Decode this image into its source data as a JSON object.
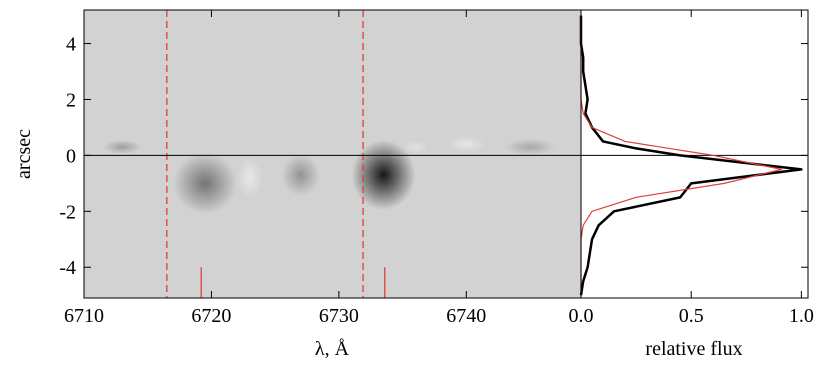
{
  "chart_data": [
    {
      "type": "heatmap",
      "xlabel": "λ, Å",
      "ylabel": "arcsec",
      "xlim": [
        6710,
        6749
      ],
      "ylim": [
        -5.1,
        5.2
      ],
      "xticks": [
        6710,
        6720,
        6730,
        6740
      ],
      "yticks": [
        -4,
        -2,
        0,
        2,
        4
      ],
      "background": "#d2d2d2",
      "features": {
        "x": [
          6719.5,
          6733.5,
          6727,
          6723,
          6713,
          6740,
          6745,
          6736
        ],
        "y": [
          -1.0,
          -0.7,
          -0.7,
          -0.8,
          0.3,
          0.4,
          0.3,
          0.3
        ],
        "width": [
          5,
          5,
          3,
          2,
          3,
          3,
          4,
          2
        ],
        "height": [
          2.2,
          2.5,
          1.5,
          1.5,
          0.5,
          0.6,
          0.6,
          0.5
        ],
        "values": [
          0.45,
          0.9,
          0.3,
          -0.5,
          0.25,
          -0.45,
          0.2,
          -0.35
        ]
      },
      "dashed_lines_x": [
        6716.5,
        6731.9
      ],
      "dashed_color": "#e0403a",
      "markers_x": [
        6719.2,
        6733.6
      ],
      "markers_ylim": [
        -5.1,
        -4.0
      ],
      "hline": 0
    },
    {
      "type": "line",
      "xlabel": "relative flux",
      "xlim": [
        0,
        1.03
      ],
      "ylim": [
        -5.1,
        5.2
      ],
      "xticks": [
        {
          "value": 0,
          "label": "0.0"
        },
        {
          "value": 0.5,
          "label": "0.5"
        },
        {
          "value": 1,
          "label": "1.0"
        }
      ],
      "yticks": [
        -4,
        -2,
        0,
        2,
        4
      ],
      "hline": 0,
      "y": [
        -5,
        -4.5,
        -4,
        -3.5,
        -3,
        -2.5,
        -2,
        -1.5,
        -1,
        -0.5,
        0,
        0.25,
        0.5,
        1,
        1.5,
        2,
        2.5,
        3,
        3.5,
        4,
        4.5,
        5
      ],
      "series": [
        {
          "color": "#000000",
          "values": [
            0.0,
            0.01,
            0.03,
            0.04,
            0.05,
            0.08,
            0.15,
            0.45,
            0.5,
            1.0,
            0.45,
            0.25,
            0.1,
            0.05,
            0.02,
            0.03,
            0.02,
            0.01,
            0.01,
            0.0,
            0.0,
            0.0
          ]
        },
        {
          "color": "#e0403a",
          "values": [
            0.0,
            0.0,
            0.0,
            0.0,
            0.0,
            0.01,
            0.05,
            0.25,
            0.65,
            0.91,
            0.6,
            0.4,
            0.2,
            0.05,
            0.01,
            0.0,
            0.0,
            0.0,
            0.0,
            0.0,
            0.0,
            0.0
          ]
        }
      ]
    }
  ]
}
